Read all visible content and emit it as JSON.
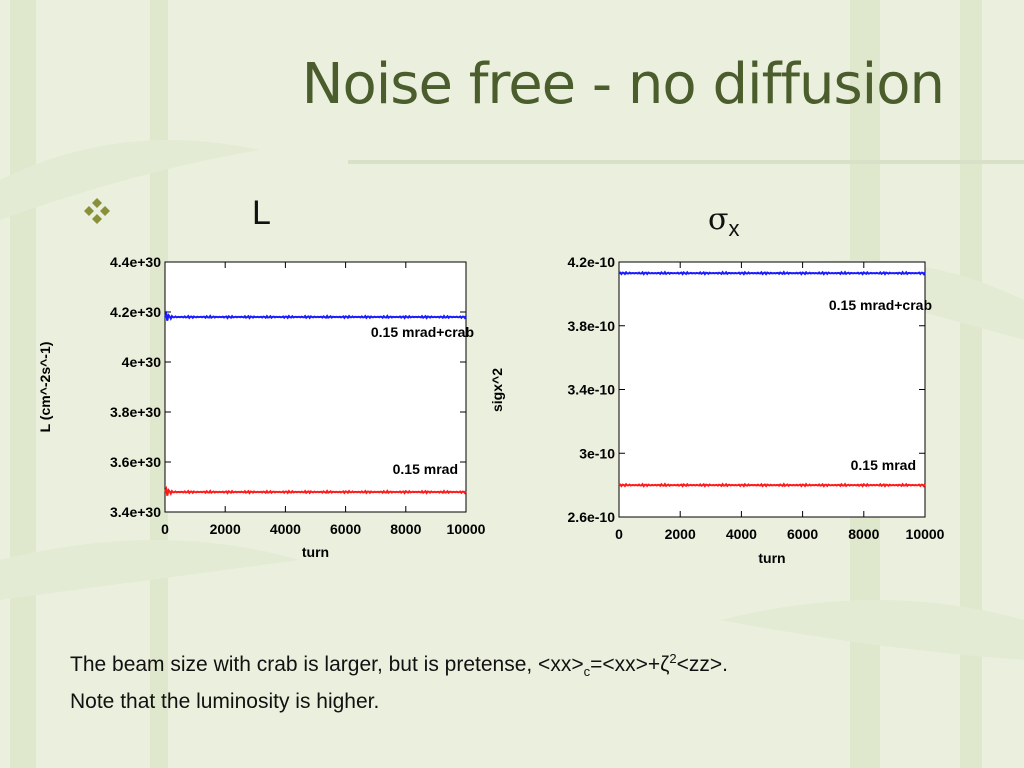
{
  "slide": {
    "title": "Noise free - no diffusion",
    "left_heading": "L",
    "right_heading_symbol": "σ",
    "right_heading_sub": "x",
    "caption_line1_a": "The beam size with crab is larger, but is pretense, <xx>",
    "caption_line1_sub": "c",
    "caption_line1_b": "=<xx>+ζ",
    "caption_line1_sup": "2",
    "caption_line1_c": "<zz>.",
    "caption_line2": "Note that the luminosity is higher."
  },
  "colors": {
    "title": "#4b5d2c",
    "series_blue": "#1a1aff",
    "series_red": "#ff1a1a"
  },
  "chart_data": [
    {
      "type": "line",
      "xlabel": "turn",
      "ylabel": "L (cm^-2s^-1)",
      "xlim": [
        0,
        10000
      ],
      "ylim": [
        3.4e+30,
        4.4e+30
      ],
      "xticks": [
        0,
        2000,
        4000,
        6000,
        8000,
        10000
      ],
      "xtick_labels": [
        "0",
        "2000",
        "4000",
        "6000",
        "8000",
        "10000"
      ],
      "yticks": [
        3.4e+30,
        3.6e+30,
        3.8e+30,
        4e+30,
        4.2e+30,
        4.4e+30
      ],
      "ytick_labels": [
        "3.4e+30",
        "3.6e+30",
        "3.8e+30",
        "4e+30",
        "4.2e+30",
        "4.4e+30"
      ],
      "series": [
        {
          "name": "0.15 mrad+crab",
          "x": [
            0,
            10000
          ],
          "values": [
            4.18e+30,
            4.18e+30
          ],
          "color": "#1a1aff"
        },
        {
          "name": "0.15 mrad",
          "x": [
            0,
            10000
          ],
          "values": [
            3.48e+30,
            3.48e+30
          ],
          "color": "#ff1a1a"
        }
      ]
    },
    {
      "type": "line",
      "xlabel": "turn",
      "ylabel": "sigx^2",
      "xlim": [
        0,
        10000
      ],
      "ylim": [
        2.6e-10,
        4.2e-10
      ],
      "xticks": [
        0,
        2000,
        4000,
        6000,
        8000,
        10000
      ],
      "xtick_labels": [
        "0",
        "2000",
        "4000",
        "6000",
        "8000",
        "10000"
      ],
      "yticks": [
        2.6e-10,
        3e-10,
        3.4e-10,
        3.8e-10,
        4.2e-10
      ],
      "ytick_labels": [
        "2.6e-10",
        "3e-10",
        "3.4e-10",
        "3.8e-10",
        "4.2e-10"
      ],
      "series": [
        {
          "name": "0.15 mrad+crab",
          "x": [
            0,
            10000
          ],
          "values": [
            4.13e-10,
            4.13e-10
          ],
          "color": "#1a1aff"
        },
        {
          "name": "0.15 mrad",
          "x": [
            0,
            10000
          ],
          "values": [
            2.8e-10,
            2.8e-10
          ],
          "color": "#ff1a1a"
        }
      ]
    }
  ]
}
